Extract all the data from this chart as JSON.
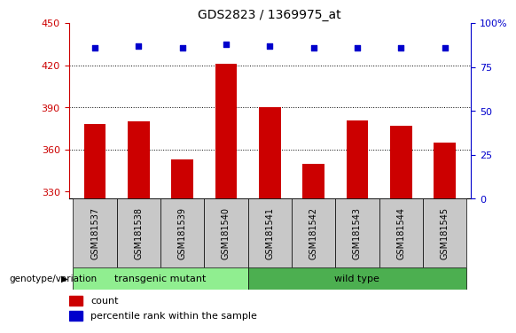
{
  "title": "GDS2823 / 1369975_at",
  "samples": [
    "GSM181537",
    "GSM181538",
    "GSM181539",
    "GSM181540",
    "GSM181541",
    "GSM181542",
    "GSM181543",
    "GSM181544",
    "GSM181545"
  ],
  "counts": [
    378,
    380,
    353,
    421,
    390,
    350,
    381,
    377,
    365
  ],
  "percentile_ranks": [
    86,
    87,
    86,
    88,
    87,
    86,
    86,
    86,
    86
  ],
  "ymin": 325,
  "ymax": 450,
  "yticks": [
    330,
    360,
    390,
    420,
    450
  ],
  "y2ticks": [
    0,
    25,
    50,
    75,
    100
  ],
  "y2min": 0,
  "y2max": 100,
  "bar_color": "#cc0000",
  "dot_color": "#0000cc",
  "grid_color": "#000000",
  "axis_color_left": "#cc0000",
  "axis_color_right": "#0000cc",
  "transgenic_label": "transgenic mutant",
  "wildtype_label": "wild type",
  "group_label": "genotype/variation",
  "legend_count": "count",
  "legend_percentile": "percentile rank within the sample",
  "transgenic_color": "#90ee90",
  "wildtype_color": "#4caf50",
  "sample_bg": "#c8c8c8",
  "bar_width": 0.5
}
